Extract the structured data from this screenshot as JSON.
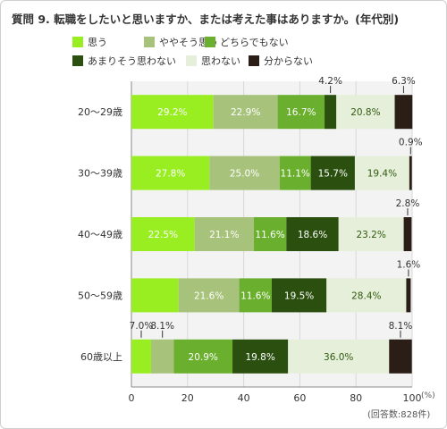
{
  "title": "質問 9. 転職をしたいと思いますか、または考えた事はありますか。(年代別)",
  "footnote": "(回答数:828件)",
  "x_unit": "(%)",
  "colors": [
    "#99ee22",
    "#a7c27a",
    "#6ab02e",
    "#2b4f0f",
    "#e6efd9",
    "#2a1e16"
  ],
  "chart_data": {
    "type": "bar",
    "orientation": "horizontal",
    "stacked": true,
    "title": "質問 9. 転職をしたいと思いますか、または考えた事はありますか。(年代別)",
    "categories": [
      "20〜29歳",
      "30〜39歳",
      "40〜49歳",
      "50〜59歳",
      "60歳以上"
    ],
    "series": [
      {
        "name": "思う",
        "values": [
          29.2,
          27.8,
          22.5,
          16.8,
          7.0
        ],
        "labels": [
          "29.2%",
          "27.8%",
          "22.5%",
          "",
          "7.0%"
        ]
      },
      {
        "name": "ややそう思う",
        "values": [
          22.9,
          25.0,
          21.1,
          21.6,
          8.1
        ],
        "labels": [
          "22.9%",
          "25.0%",
          "21.1%",
          "21.6%",
          "8.1%"
        ]
      },
      {
        "name": "どちらでもない",
        "values": [
          16.7,
          11.1,
          11.6,
          11.6,
          20.9
        ],
        "labels": [
          "16.7%",
          "11.1%",
          "11.6%",
          "11.6%",
          "20.9%"
        ]
      },
      {
        "name": "あまりそう思わない",
        "values": [
          4.2,
          15.7,
          18.6,
          19.5,
          19.8
        ],
        "labels": [
          "4.2%",
          "15.7%",
          "18.6%",
          "19.5%",
          "19.8%"
        ]
      },
      {
        "name": "思わない",
        "values": [
          20.8,
          19.4,
          23.2,
          28.4,
          36.0
        ],
        "labels": [
          "20.8%",
          "19.4%",
          "23.2%",
          "28.4%",
          "36.0%"
        ]
      },
      {
        "name": "分からない",
        "values": [
          6.3,
          0.9,
          2.8,
          1.6,
          8.1
        ],
        "labels": [
          "6.3%",
          "0.9%",
          "2.8%",
          "1.6%",
          "8.1%"
        ]
      }
    ],
    "xlim": [
      0,
      100
    ],
    "xticks": [
      0,
      20,
      40,
      60,
      80,
      100
    ],
    "grid": true,
    "legend": "top-left"
  }
}
